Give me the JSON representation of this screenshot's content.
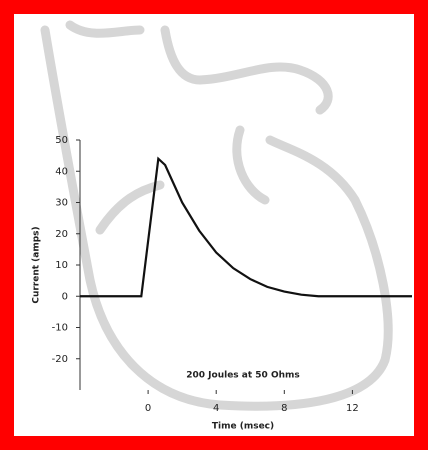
{
  "chart_data": {
    "type": "line",
    "x_label": "Time (msec)",
    "y_label": "Current (amps)",
    "annotation": "200 Joules at 50 Ohms",
    "x": [
      -4,
      -0.4,
      0.6,
      1,
      1.5,
      2,
      3,
      4,
      5,
      6,
      7,
      8,
      9,
      10,
      15.5
    ],
    "values": [
      0,
      0,
      44,
      42,
      36,
      30,
      21,
      14,
      9,
      5.5,
      3,
      1.5,
      0.5,
      0,
      0
    ],
    "color": "#111111",
    "xlim": [
      -4,
      15.5
    ],
    "xticks": [
      0,
      4,
      8,
      12
    ],
    "ylim": [
      -30,
      50
    ],
    "yticks": [
      -20,
      -10,
      0,
      10,
      20,
      30,
      40,
      50
    ]
  }
}
